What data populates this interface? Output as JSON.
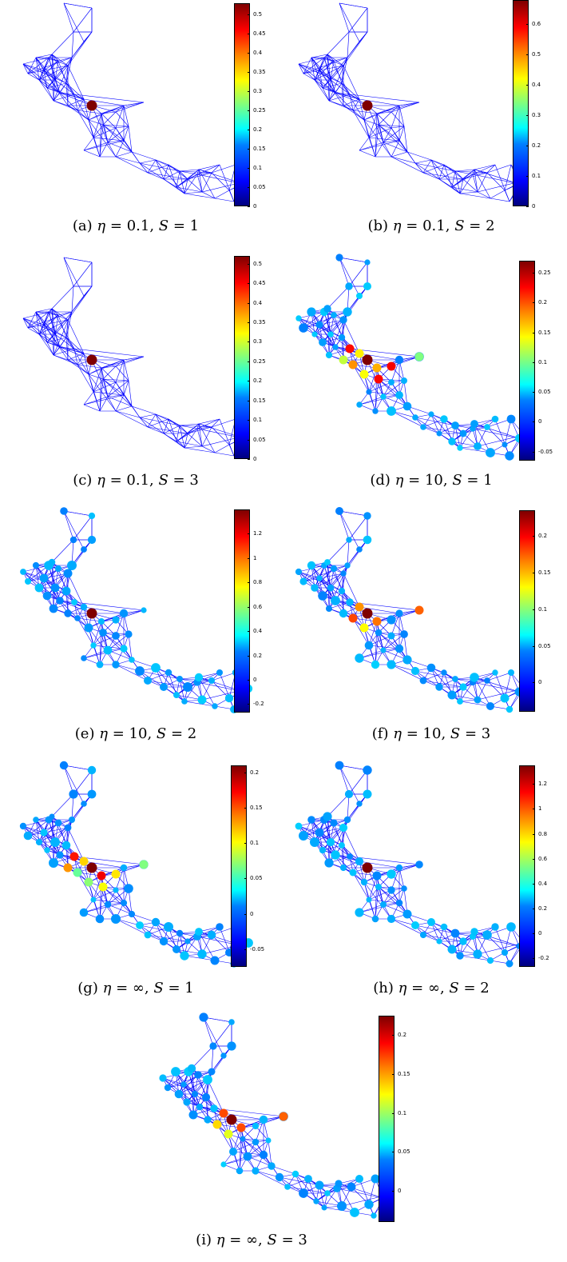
{
  "panels": [
    {
      "id": "a",
      "label": "(a)",
      "eta": "0.1",
      "s": "1",
      "ticks": [
        "0",
        "0.05",
        "0.1",
        "0.15",
        "0.2",
        "0.25",
        "0.3",
        "0.35",
        "0.4",
        "0.45",
        "0.5"
      ],
      "tick_min": 0,
      "tick_max": 0.53,
      "colored": false
    },
    {
      "id": "b",
      "label": "(b)",
      "eta": "0.1",
      "s": "2",
      "ticks": [
        "0",
        "0.1",
        "0.2",
        "0.3",
        "0.4",
        "0.5",
        "0.6"
      ],
      "tick_min": 0,
      "tick_max": 0.68,
      "colored": false
    },
    {
      "id": "c",
      "label": "(c)",
      "eta": "0.1",
      "s": "3",
      "ticks": [
        "0",
        "0.05",
        "0.1",
        "0.15",
        "0.2",
        "0.25",
        "0.3",
        "0.35",
        "0.4",
        "0.45",
        "0.5"
      ],
      "tick_min": 0,
      "tick_max": 0.52,
      "colored": false
    },
    {
      "id": "d",
      "label": "(d)",
      "eta": "10",
      "s": "1",
      "ticks": [
        "-0.05",
        "0",
        "0.05",
        "0.1",
        "0.15",
        "0.2",
        "0.25"
      ],
      "tick_min": -0.065,
      "tick_max": 0.27,
      "colored": true
    },
    {
      "id": "e",
      "label": "(e)",
      "eta": "10",
      "s": "2",
      "ticks": [
        "-0.2",
        "0",
        "0.2",
        "0.4",
        "0.6",
        "0.8",
        "1",
        "1.2"
      ],
      "tick_min": -0.27,
      "tick_max": 1.4,
      "colored": true
    },
    {
      "id": "f",
      "label": "(f)",
      "eta": "10",
      "s": "3",
      "ticks": [
        "0",
        "0.05",
        "0.1",
        "0.15",
        "0.2"
      ],
      "tick_min": -0.04,
      "tick_max": 0.235,
      "colored": true
    },
    {
      "id": "g",
      "label": "(g)",
      "eta": "∞",
      "s": "1",
      "ticks": [
        "-0.05",
        "0",
        "0.05",
        "0.1",
        "0.15",
        "0.2"
      ],
      "tick_min": -0.075,
      "tick_max": 0.21,
      "colored": true
    },
    {
      "id": "h",
      "label": "(h)",
      "eta": "∞",
      "s": "2",
      "ticks": [
        "-0.2",
        "0",
        "0.2",
        "0.4",
        "0.6",
        "0.8",
        "1",
        "1.2"
      ],
      "tick_min": -0.27,
      "tick_max": 1.35,
      "colored": true
    },
    {
      "id": "i",
      "label": "(i)",
      "eta": "∞",
      "s": "3",
      "ticks": [
        "0",
        "0.05",
        "0.1",
        "0.15",
        "0.2"
      ],
      "tick_min": -0.04,
      "tick_max": 0.225,
      "colored": true
    }
  ],
  "caption_parts": {
    "eta_symbol": "η",
    "equals": " = ",
    "sep": ", ",
    "s_symbol": "S"
  },
  "colors": {
    "edge": "#0000ff",
    "node": "#1e5aff",
    "highlight": "#7f0000"
  }
}
